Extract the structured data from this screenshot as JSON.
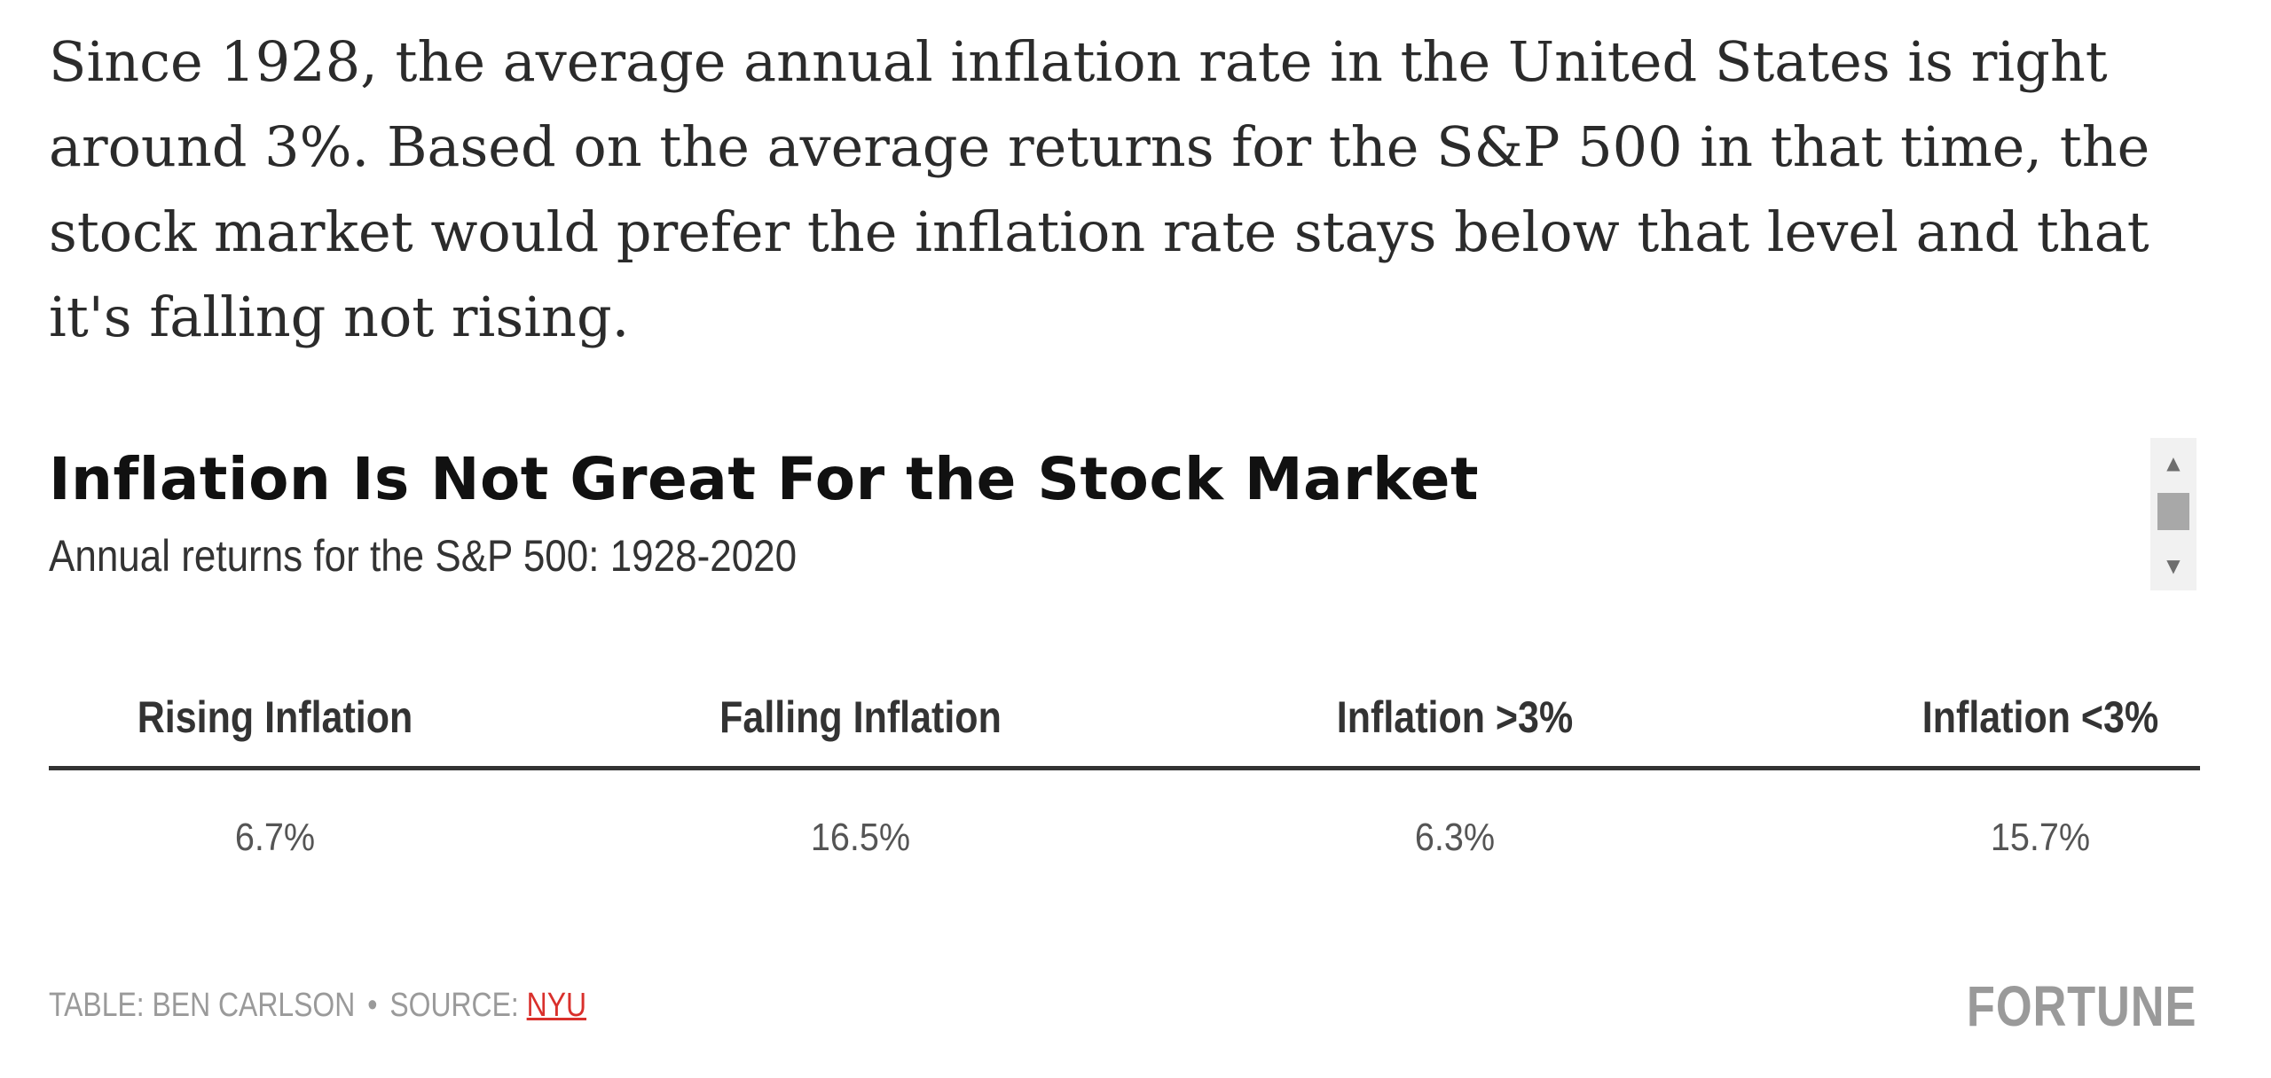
{
  "article": {
    "paragraph": "Since 1928, the average annual inflation rate in the United States is right around 3%. Based on the average returns for the S&P 500 in that time, the stock market would prefer the inflation rate stays below that level and that it's falling not rising."
  },
  "table_widget": {
    "title": "Inflation Is Not Great For the Stock Market",
    "subtitle": "Annual returns for the S&P 500: 1928-2020",
    "columns": [
      "Rising Inflation",
      "Falling Inflation",
      "Inflation >3%",
      "Inflation <3%"
    ],
    "rows": [
      [
        "6.7%",
        "16.5%",
        "6.3%",
        "15.7%"
      ]
    ],
    "credit": {
      "prefix": "TABLE: BEN CARLSON",
      "separator": "•",
      "source_label": "SOURCE:",
      "source_link": "NYU"
    },
    "brand": "FORTUNE",
    "accent_color": "#d9302c"
  },
  "scrollbar": {
    "up_icon": "▲",
    "down_icon": "▼"
  }
}
